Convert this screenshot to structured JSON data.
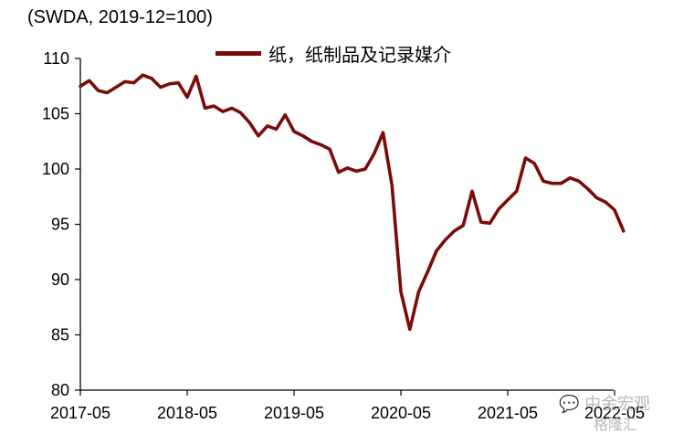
{
  "chart_data": {
    "type": "line",
    "unit_label": "(SWDA, 2019-12=100)",
    "ylim": [
      80,
      110
    ],
    "yticks": [
      80,
      85,
      90,
      95,
      100,
      105,
      110
    ],
    "xticks": [
      "2017-05",
      "2018-05",
      "2019-05",
      "2020-05",
      "2021-05",
      "2022-05"
    ],
    "x_start": "2017-05",
    "legend": {
      "position": "top-center"
    },
    "grid": false,
    "series": [
      {
        "name": "纸，纸制品及记录媒介",
        "color": "#7a0b0b",
        "values": [
          107.5,
          108.0,
          107.1,
          106.9,
          107.4,
          107.9,
          107.8,
          108.5,
          108.2,
          107.4,
          107.7,
          107.8,
          106.5,
          108.4,
          105.5,
          105.7,
          105.2,
          105.5,
          105.1,
          104.2,
          103.0,
          103.9,
          103.6,
          104.9,
          103.4,
          103.0,
          102.5,
          102.2,
          101.8,
          99.7,
          100.1,
          99.8,
          100.0,
          101.4,
          103.3,
          98.5,
          88.9,
          85.5,
          88.9,
          90.7,
          92.6,
          93.6,
          94.4,
          94.9,
          98.0,
          95.2,
          95.1,
          96.4,
          97.2,
          98.0,
          101.0,
          100.5,
          98.9,
          98.7,
          98.7,
          99.2,
          98.9,
          98.2,
          97.4,
          97.0,
          96.3,
          94.4
        ]
      }
    ]
  },
  "watermark": {
    "line1": "中金宏观",
    "line2": "格隆汇"
  }
}
